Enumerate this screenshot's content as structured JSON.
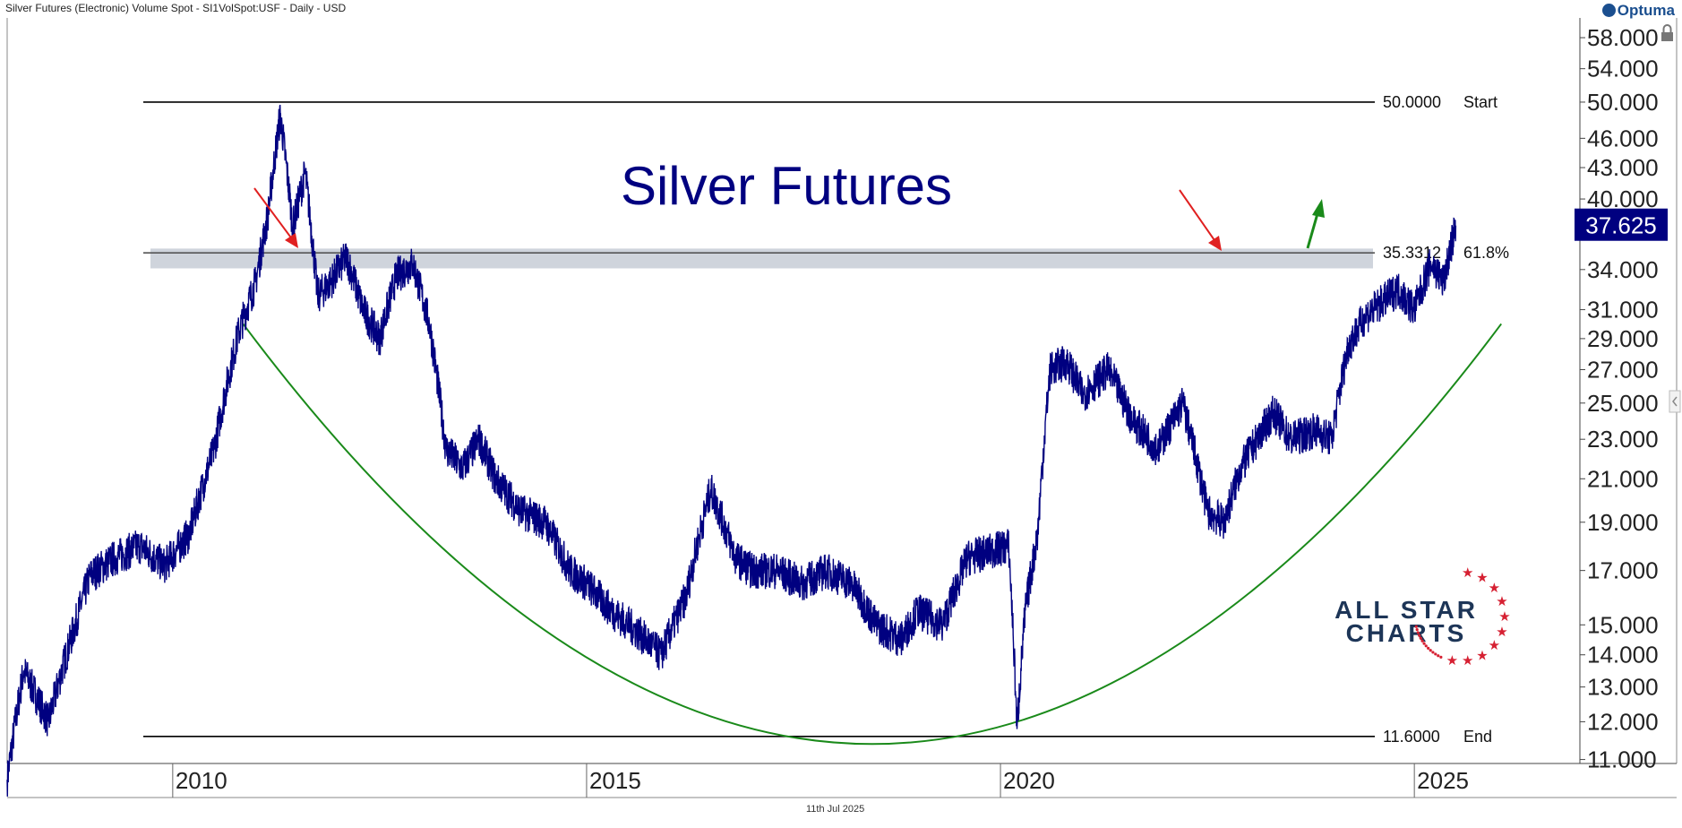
{
  "header": {
    "title": "Silver Futures (Electronic) Volume Spot - SI1VolSpot:USF - Daily - USD"
  },
  "brand": {
    "optuma": "Optuma",
    "watermark_line1": "ALL STAR",
    "watermark_line2": "CHARTS"
  },
  "footer": {
    "date": "11th Jul 2025"
  },
  "colors": {
    "price": "#000080",
    "arc": "#1a8a1a",
    "arrow_red": "#e02020",
    "arrow_green": "#1a8a1a",
    "band": "#cfd4dc",
    "last_price_bg": "#000080"
  },
  "chart_data": {
    "type": "line",
    "title": "Silver Futures",
    "yscale": "log",
    "ylim": [
      10.5,
      62
    ],
    "xlim": [
      2008.0,
      2027.0
    ],
    "y_ticks": [
      "58.000",
      "54.000",
      "50.000",
      "46.000",
      "43.000",
      "40.000",
      "34.000",
      "31.000",
      "29.000",
      "27.000",
      "25.000",
      "23.000",
      "21.000",
      "19.000",
      "17.000",
      "15.000",
      "14.000",
      "13.000",
      "12.000",
      "11.000"
    ],
    "x_ticks": [
      "2010",
      "2015",
      "2020",
      "2025"
    ],
    "last_price": "37.625",
    "levels": [
      {
        "value": 50.0,
        "value_label": "50.0000",
        "label": "Start"
      },
      {
        "value": 35.3312,
        "value_label": "35.3312",
        "label": "61.8%"
      },
      {
        "value": 11.6,
        "value_label": "11.6000",
        "label": "End"
      }
    ],
    "series": [
      {
        "x": [
          2008.0,
          2008.2,
          2008.5,
          2008.8,
          2009.0,
          2009.3,
          2009.6,
          2009.9,
          2010.2,
          2010.5,
          2010.8,
          2011.0,
          2011.15,
          2011.3,
          2011.45,
          2011.6,
          2011.75,
          2011.9,
          2012.1,
          2012.3,
          2012.5,
          2012.7,
          2012.9,
          2013.1,
          2013.3,
          2013.5,
          2013.7,
          2013.9,
          2014.2,
          2014.5,
          2014.8,
          2015.0,
          2015.3,
          2015.6,
          2015.9,
          2016.2,
          2016.5,
          2016.8,
          2017.0,
          2017.3,
          2017.6,
          2017.9,
          2018.2,
          2018.5,
          2018.8,
          2019.0,
          2019.3,
          2019.6,
          2019.9,
          2020.1,
          2020.2,
          2020.3,
          2020.45,
          2020.6,
          2020.8,
          2021.0,
          2021.3,
          2021.6,
          2021.9,
          2022.2,
          2022.5,
          2022.7,
          2022.9,
          2023.1,
          2023.3,
          2023.5,
          2023.8,
          2024.0,
          2024.2,
          2024.4,
          2024.6,
          2024.8,
          2025.0,
          2025.2,
          2025.35,
          2025.5
        ],
        "values": [
          10.5,
          13.5,
          12.0,
          14.8,
          16.8,
          17.5,
          18.0,
          17.2,
          18.5,
          22.5,
          29.5,
          33.0,
          38.5,
          48.5,
          37.5,
          42.5,
          32.0,
          33.0,
          35.0,
          31.0,
          29.0,
          33.5,
          34.5,
          30.0,
          22.5,
          21.5,
          23.0,
          21.0,
          19.5,
          19.0,
          17.0,
          16.5,
          15.5,
          14.8,
          14.0,
          16.0,
          20.5,
          17.5,
          17.0,
          17.0,
          16.5,
          17.0,
          16.5,
          15.0,
          14.5,
          15.5,
          15.0,
          17.5,
          17.8,
          18.0,
          11.8,
          15.5,
          18.5,
          27.0,
          27.5,
          25.5,
          27.0,
          24.0,
          22.5,
          25.0,
          19.5,
          19.0,
          21.5,
          23.0,
          24.5,
          23.0,
          23.5,
          23.0,
          28.5,
          30.5,
          31.5,
          32.5,
          31.0,
          34.5,
          33.0,
          37.625
        ]
      }
    ]
  }
}
